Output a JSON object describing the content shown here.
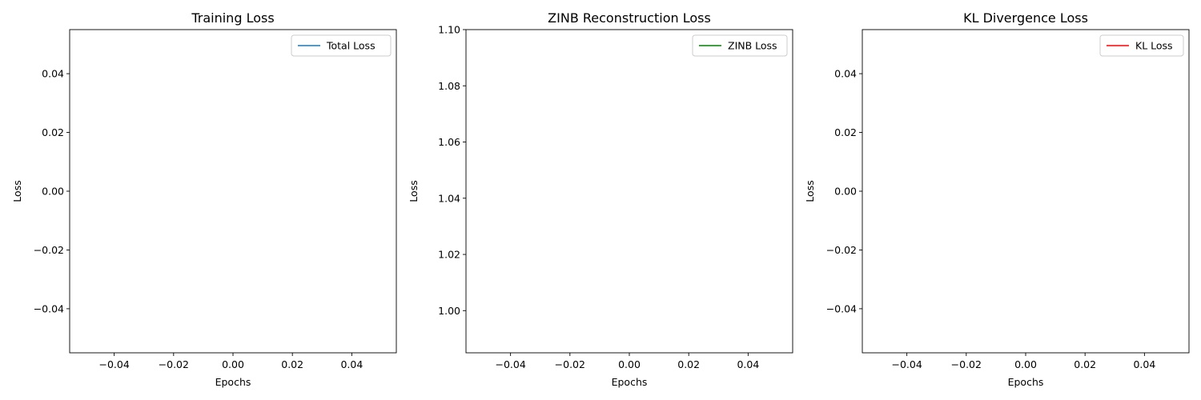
{
  "chart_data": [
    {
      "type": "line",
      "title": "Training Loss",
      "xlabel": "Epochs",
      "ylabel": "Loss",
      "xlim": [
        -0.055,
        0.055
      ],
      "ylim": [
        -0.055,
        0.055
      ],
      "xticks": [
        -0.04,
        -0.02,
        0.0,
        0.02,
        0.04
      ],
      "xtick_labels": [
        "−0.04",
        "−0.02",
        "0.00",
        "0.02",
        "0.04"
      ],
      "yticks": [
        -0.04,
        -0.02,
        0.0,
        0.02,
        0.04
      ],
      "ytick_labels": [
        "−0.04",
        "−0.02",
        "0.00",
        "0.02",
        "0.04"
      ],
      "grid": false,
      "legend_position": "top-right",
      "series": [
        {
          "name": "Total Loss",
          "color": "#1f77b4",
          "x": [],
          "y": []
        }
      ]
    },
    {
      "type": "line",
      "title": "ZINB Reconstruction Loss",
      "xlabel": "Epochs",
      "ylabel": "Loss",
      "xlim": [
        -0.055,
        0.055
      ],
      "ylim": [
        0.985,
        1.1
      ],
      "xticks": [
        -0.04,
        -0.02,
        0.0,
        0.02,
        0.04
      ],
      "xtick_labels": [
        "−0.04",
        "−0.02",
        "0.00",
        "0.02",
        "0.04"
      ],
      "yticks": [
        1.0,
        1.02,
        1.04,
        1.06,
        1.08,
        1.1
      ],
      "ytick_labels": [
        "1.00",
        "1.02",
        "1.04",
        "1.06",
        "1.08",
        "1.10"
      ],
      "grid": false,
      "legend_position": "top-right",
      "series": [
        {
          "name": "ZINB Loss",
          "color": "#008000",
          "x": [],
          "y": []
        }
      ]
    },
    {
      "type": "line",
      "title": "KL Divergence Loss",
      "xlabel": "Epochs",
      "ylabel": "Loss",
      "xlim": [
        -0.055,
        0.055
      ],
      "ylim": [
        -0.055,
        0.055
      ],
      "xticks": [
        -0.04,
        -0.02,
        0.0,
        0.02,
        0.04
      ],
      "xtick_labels": [
        "−0.04",
        "−0.02",
        "0.00",
        "0.02",
        "0.04"
      ],
      "yticks": [
        -0.04,
        -0.02,
        0.0,
        0.02,
        0.04
      ],
      "ytick_labels": [
        "−0.04",
        "−0.02",
        "0.00",
        "0.02",
        "0.04"
      ],
      "grid": false,
      "legend_position": "top-right",
      "series": [
        {
          "name": "KL Loss",
          "color": "#ff0000",
          "x": [],
          "y": []
        }
      ]
    }
  ]
}
